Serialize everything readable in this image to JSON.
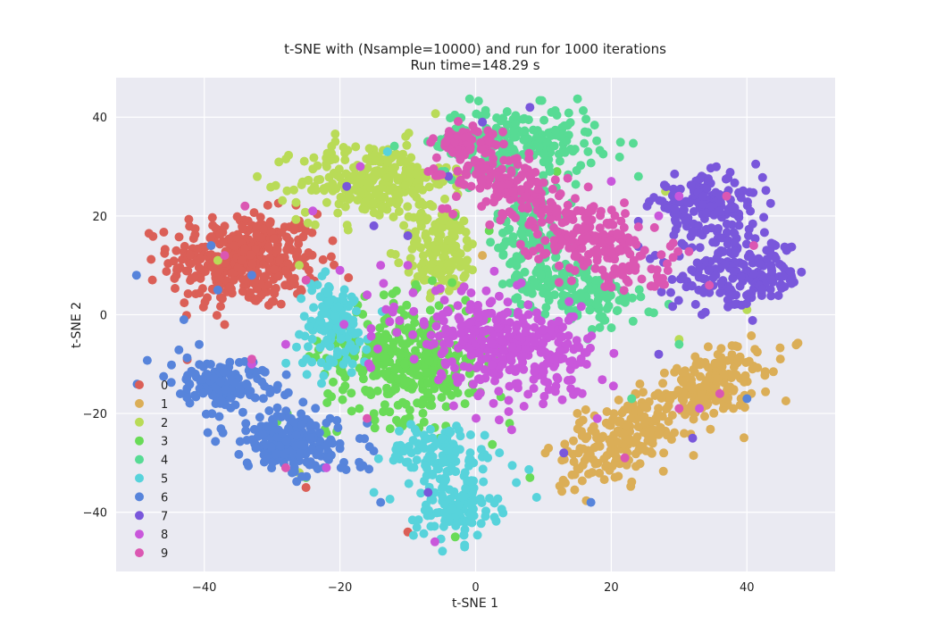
{
  "chart_data": {
    "type": "scatter",
    "title": "t-SNE with (Nsample=10000) and run for 1000 iterations",
    "subtitle": "Run time=148.29 s",
    "xlabel": "t-SNE 1",
    "ylabel": "t-SNE 2",
    "xlim": [
      -53,
      53
    ],
    "ylim": [
      -52,
      48
    ],
    "xticks": [
      -40,
      -20,
      0,
      20,
      40
    ],
    "yticks": [
      -40,
      -20,
      0,
      20,
      40
    ],
    "xtick_labels": [
      "−40",
      "−20",
      "0",
      "20",
      "40"
    ],
    "ytick_labels": [
      "−40",
      "−20",
      "0",
      "20",
      "40"
    ],
    "grid": true,
    "legend_position": "lower-left",
    "background_color": "#eaeaf2",
    "series": [
      {
        "name": "0",
        "color": "#db5f57",
        "clusters": [
          {
            "cx": -34,
            "cy": 11,
            "sx": 5.5,
            "sy": 4.8,
            "n": 380,
            "rot": 0
          }
        ],
        "outliers": [
          [
            -26,
            19
          ],
          [
            -25,
            -35
          ],
          [
            -10,
            -44
          ],
          [
            -37,
            -2
          ],
          [
            -22,
            2
          ]
        ]
      },
      {
        "name": "1",
        "color": "#dbae57",
        "clusters": [
          {
            "cx": 22,
            "cy": -25,
            "sx": 6,
            "sy": 3.2,
            "n": 200,
            "rot": 40
          },
          {
            "cx": 35,
            "cy": -14,
            "sx": 5,
            "sy": 3,
            "n": 160,
            "rot": 35
          }
        ],
        "outliers": [
          [
            1,
            12
          ],
          [
            15,
            -20
          ],
          [
            38,
            -19
          ]
        ]
      },
      {
        "name": "2",
        "color": "#b9db57",
        "clusters": [
          {
            "cx": -15,
            "cy": 27,
            "sx": 5.5,
            "sy": 4,
            "n": 260,
            "rot": 0
          },
          {
            "cx": -5,
            "cy": 13,
            "sx": 2.8,
            "sy": 4.5,
            "n": 150,
            "rot": 0
          }
        ],
        "outliers": [
          [
            -38,
            11
          ],
          [
            -26,
            -32
          ],
          [
            40,
            1
          ],
          [
            -26,
            10
          ],
          [
            28,
            25
          ],
          [
            30,
            -5
          ]
        ]
      },
      {
        "name": "3",
        "color": "#69db57",
        "clusters": [
          {
            "cx": -10,
            "cy": -9,
            "sx": 6,
            "sy": 6,
            "n": 380,
            "rot": 0
          }
        ],
        "outliers": [
          [
            2,
            17
          ],
          [
            -3,
            20
          ],
          [
            -22,
            -24
          ],
          [
            -25,
            -33
          ],
          [
            5,
            -22
          ],
          [
            -3,
            -45
          ],
          [
            8,
            -33
          ],
          [
            12,
            29
          ]
        ]
      },
      {
        "name": "4",
        "color": "#57db94",
        "clusters": [
          {
            "cx": 6,
            "cy": 35,
            "sx": 6,
            "sy": 3.5,
            "n": 220,
            "rot": 0
          },
          {
            "cx": 14,
            "cy": 5,
            "sx": 5,
            "sy": 3,
            "n": 190,
            "rot": -25
          },
          {
            "cx": 8,
            "cy": 18,
            "sx": 2.5,
            "sy": 4,
            "n": 90,
            "rot": 0
          }
        ],
        "outliers": [
          [
            -4,
            36
          ],
          [
            -5,
            29
          ],
          [
            24,
            28
          ],
          [
            30,
            -6
          ],
          [
            23,
            -17
          ],
          [
            1,
            -1
          ]
        ]
      },
      {
        "name": "5",
        "color": "#57d3db",
        "clusters": [
          {
            "cx": -21,
            "cy": -2,
            "sx": 2.6,
            "sy": 4.5,
            "n": 130,
            "rot": 0
          },
          {
            "cx": -5,
            "cy": -28,
            "sx": 4,
            "sy": 3,
            "n": 110,
            "rot": 0
          },
          {
            "cx": -3,
            "cy": -39,
            "sx": 3,
            "sy": 3.5,
            "n": 120,
            "rot": 0
          }
        ],
        "outliers": [
          [
            -13,
            33
          ],
          [
            6,
            -34
          ],
          [
            -26,
            -4
          ],
          [
            -15,
            -36
          ],
          [
            9,
            -37
          ]
        ]
      },
      {
        "name": "6",
        "color": "#5784db",
        "clusters": [
          {
            "cx": -37,
            "cy": -14,
            "sx": 4,
            "sy": 2.6,
            "n": 150,
            "rot": -20
          },
          {
            "cx": -27,
            "cy": -26,
            "sx": 5,
            "sy": 3,
            "n": 200,
            "rot": -15
          }
        ],
        "outliers": [
          [
            -50,
            8
          ],
          [
            -43,
            -1
          ],
          [
            -39,
            14
          ],
          [
            -38,
            5
          ],
          [
            -14,
            -38
          ],
          [
            40,
            -17
          ],
          [
            -33,
            8
          ],
          [
            17,
            -38
          ]
        ]
      },
      {
        "name": "7",
        "color": "#7957db",
        "clusters": [
          {
            "cx": 34,
            "cy": 22,
            "sx": 4,
            "sy": 3,
            "n": 170,
            "rot": 0
          },
          {
            "cx": 39,
            "cy": 8,
            "sx": 5,
            "sy": 3.5,
            "n": 190,
            "rot": 0
          }
        ],
        "outliers": [
          [
            -4,
            28
          ],
          [
            -15,
            18
          ],
          [
            -10,
            16
          ],
          [
            8,
            42
          ],
          [
            1,
            39
          ],
          [
            13,
            -28
          ],
          [
            27,
            -8
          ],
          [
            32,
            -25
          ],
          [
            -19,
            26
          ],
          [
            -7,
            -36
          ]
        ]
      },
      {
        "name": "8",
        "color": "#c957db",
        "clusters": [
          {
            "cx": 4,
            "cy": -6,
            "sx": 7,
            "sy": 4.5,
            "n": 370,
            "rot": -20
          }
        ],
        "outliers": [
          [
            -24,
            21
          ],
          [
            -20,
            9
          ],
          [
            -14,
            10
          ],
          [
            -33,
            -10
          ],
          [
            -28,
            -6
          ],
          [
            -10,
            10
          ],
          [
            -16,
            4
          ],
          [
            -22,
            -31
          ],
          [
            -6,
            -46
          ],
          [
            20,
            27
          ],
          [
            27,
            20
          ],
          [
            30,
            24
          ],
          [
            -17,
            30
          ],
          [
            33,
            -19
          ]
        ]
      },
      {
        "name": "9",
        "color": "#db57b2",
        "clusters": [
          {
            "cx": 5,
            "cy": 26,
            "sx": 5,
            "sy": 3,
            "n": 160,
            "rot": -25
          },
          {
            "cx": 18,
            "cy": 14,
            "sx": 6,
            "sy": 3.5,
            "n": 200,
            "rot": -30
          },
          {
            "cx": -1,
            "cy": 35,
            "sx": 2.5,
            "sy": 1.5,
            "n": 50,
            "rot": 0
          }
        ],
        "outliers": [
          [
            -34,
            22
          ],
          [
            -25,
            7
          ],
          [
            -16,
            -21
          ],
          [
            -33,
            -9
          ],
          [
            -7,
            29
          ],
          [
            37,
            24
          ],
          [
            41,
            14
          ],
          [
            36,
            -16
          ],
          [
            22,
            -29
          ],
          [
            -28,
            -31
          ],
          [
            30,
            -19
          ],
          [
            -37,
            12
          ]
        ]
      }
    ]
  }
}
